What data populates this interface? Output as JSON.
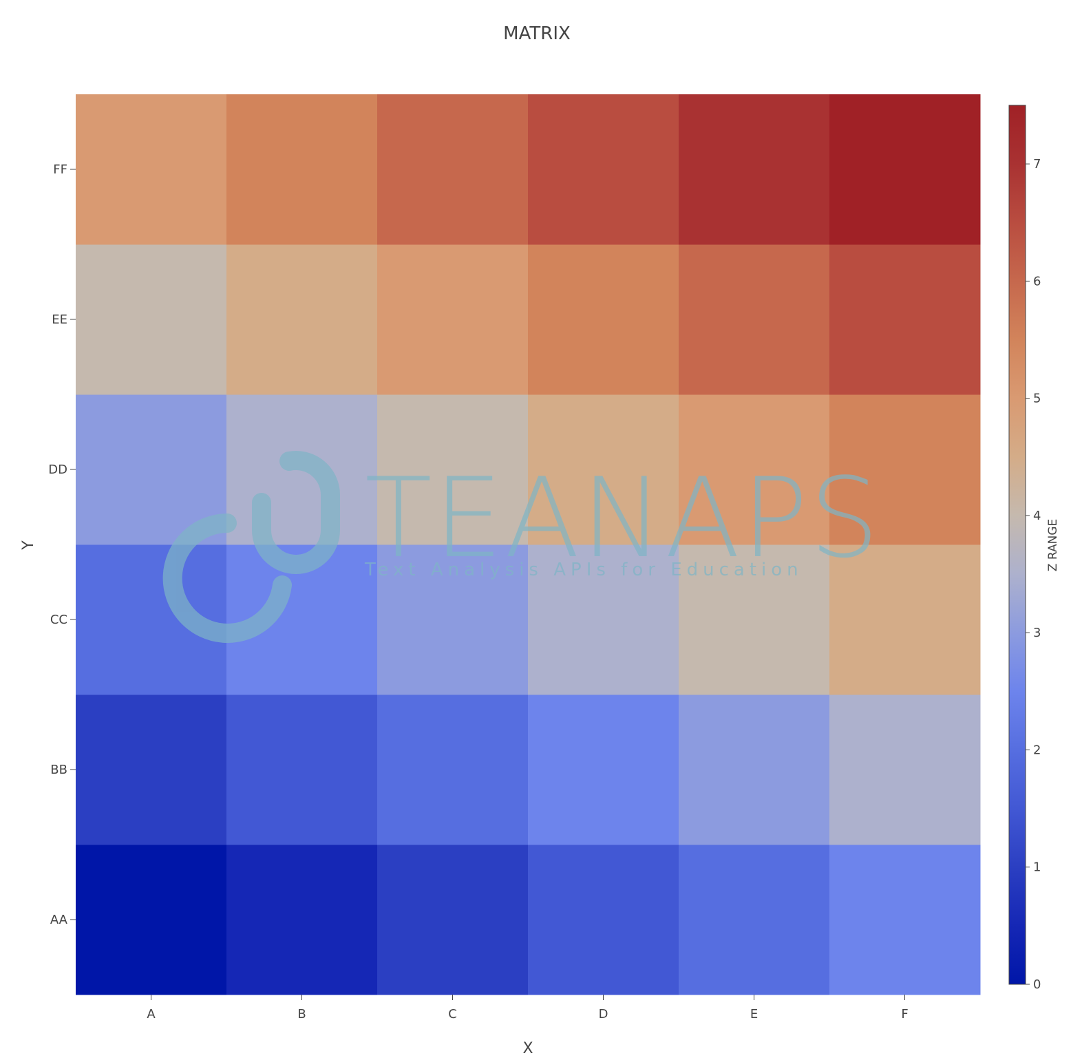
{
  "chart_data": {
    "type": "heatmap",
    "title": "MATRIX",
    "xlabel": "X",
    "ylabel": "Y",
    "x_categories": [
      "A",
      "B",
      "C",
      "D",
      "E",
      "F"
    ],
    "y_categories": [
      "AA",
      "BB",
      "CC",
      "DD",
      "EE",
      "FF"
    ],
    "z": [
      [
        0,
        0.5,
        1,
        1.5,
        2,
        2.5
      ],
      [
        1,
        1.5,
        2,
        2.5,
        3,
        3.5
      ],
      [
        2,
        2.5,
        3,
        3.5,
        4,
        4.5
      ],
      [
        3,
        3.5,
        4,
        4.5,
        5,
        5.5
      ],
      [
        4,
        4.5,
        5,
        5.5,
        6,
        6.5
      ],
      [
        5,
        5.5,
        6,
        6.5,
        7,
        7.5
      ]
    ],
    "colorbar": {
      "title": "Z RANGE",
      "range": [
        0,
        7.5
      ],
      "ticks": [
        0,
        1,
        2,
        3,
        4,
        5,
        6,
        7
      ],
      "colorscale": [
        [
          0,
          "#0016a8"
        ],
        [
          0.0667,
          "#1527b5"
        ],
        [
          0.1333,
          "#2b3fc2"
        ],
        [
          0.2,
          "#4258d4"
        ],
        [
          0.2667,
          "#566ee0"
        ],
        [
          0.3333,
          "#6d84ec"
        ],
        [
          0.4,
          "#8c9bdf"
        ],
        [
          0.4667,
          "#adb1cd"
        ],
        [
          0.5333,
          "#c5b9ae"
        ],
        [
          0.6,
          "#d4ac88"
        ],
        [
          0.6667,
          "#d99a72"
        ],
        [
          0.7333,
          "#d2845b"
        ],
        [
          0.8,
          "#c6684d"
        ],
        [
          0.8667,
          "#b94d40"
        ],
        [
          0.9333,
          "#a93232"
        ],
        [
          1,
          "#a02126"
        ]
      ]
    }
  },
  "watermark": {
    "brand": "TEANAPS",
    "tagline": "Text Analysis APIs for Education",
    "color": "#7fb5c6"
  }
}
